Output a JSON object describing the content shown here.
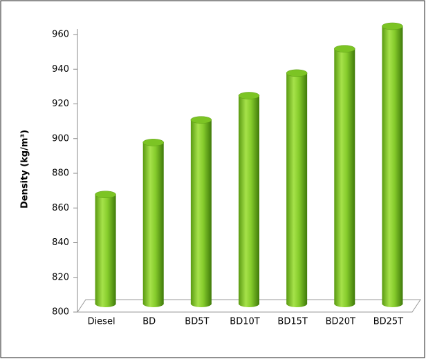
{
  "chart_data": {
    "type": "bar",
    "y_label": "Density (kg/m³)",
    "categories": [
      "Diesel",
      "BD",
      "BD5T",
      "BD10T",
      "BD15T",
      "BD20T",
      "BD25T"
    ],
    "values": [
      863,
      893,
      906,
      920,
      933,
      947,
      960
    ],
    "color": "#7cc424",
    "ylim": [
      800,
      960
    ],
    "yticks": [
      800,
      820,
      840,
      860,
      880,
      900,
      920,
      940,
      960
    ]
  }
}
